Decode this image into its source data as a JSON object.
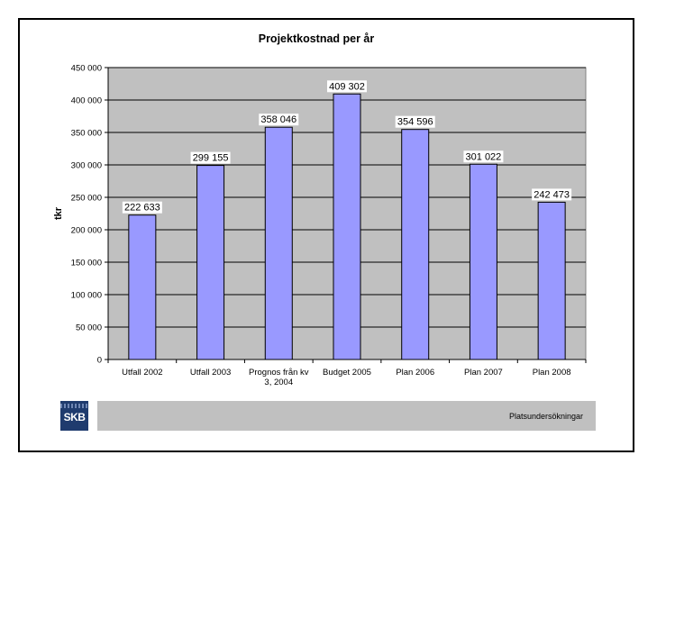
{
  "chart_data": {
    "type": "bar",
    "title": "Projektkostnad per år",
    "ylabel": "tkr",
    "xlabel": "",
    "categories": [
      "Utfall 2002",
      "Utfall 2003",
      "Prognos från kv 3, 2004",
      "Budget 2005",
      "Plan 2006",
      "Plan 2007",
      "Plan 2008"
    ],
    "category_lines": [
      [
        "Utfall 2002"
      ],
      [
        "Utfall 2003"
      ],
      [
        "Prognos från kv",
        "3, 2004"
      ],
      [
        "Budget 2005"
      ],
      [
        "Plan 2006"
      ],
      [
        "Plan 2007"
      ],
      [
        "Plan 2008"
      ]
    ],
    "values": [
      222633,
      299155,
      358046,
      409302,
      354596,
      301022,
      242473
    ],
    "value_labels": [
      "222 633",
      "299 155",
      "358 046",
      "409 302",
      "354 596",
      "301 022",
      "242 473"
    ],
    "ylim": [
      0,
      450000
    ],
    "yticks": [
      0,
      50000,
      100000,
      150000,
      200000,
      250000,
      300000,
      350000,
      400000,
      450000
    ],
    "ytick_labels": [
      "0",
      "50 000",
      "100 000",
      "150 000",
      "200 000",
      "250 000",
      "300 000",
      "350 000",
      "400 000",
      "450 000"
    ],
    "grid": true,
    "legend": "none",
    "colors": {
      "bar_fill": "#9999ff",
      "bar_stroke": "#000000",
      "plot_background": "#c0c0c0",
      "gridline": "#000000"
    }
  },
  "footer": {
    "label": "Platsundersökningar",
    "logo_text": "SKB"
  }
}
